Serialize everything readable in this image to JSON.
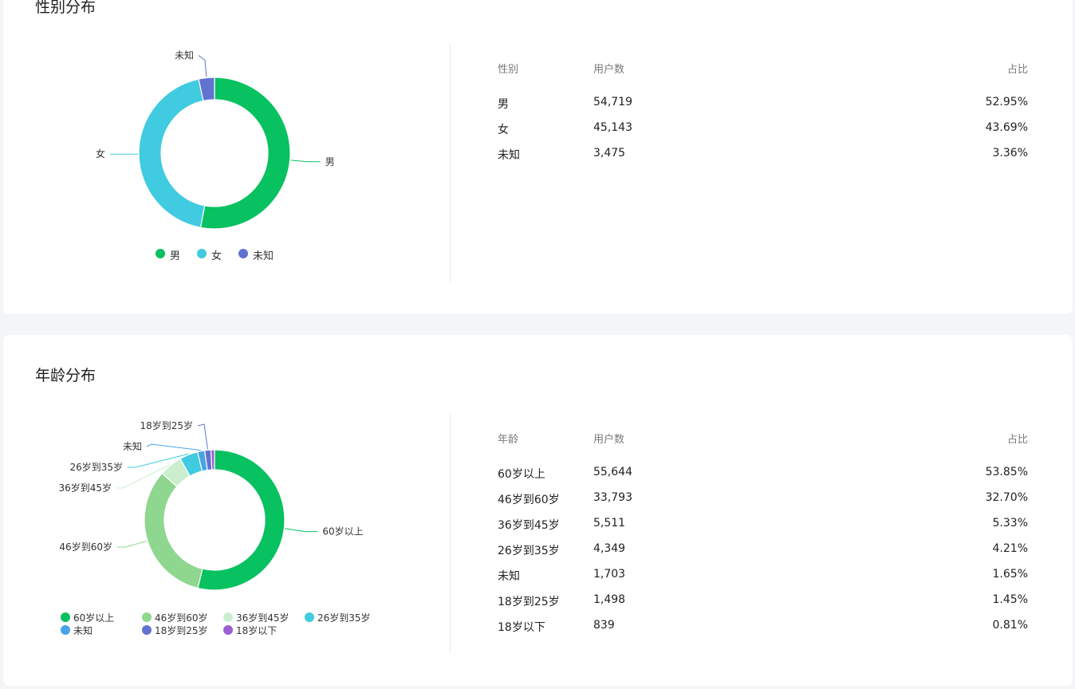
{
  "colors": {
    "male": "#08c160",
    "female": "#40cbe0",
    "unknown_gender": "#6272d0",
    "age_60plus": "#08c160",
    "age_46_60": "#8fd68f",
    "age_36_45": "#cbeecf",
    "age_26_35": "#40cbe0",
    "age_unknown": "#47a3e8",
    "age_18_25": "#6272d0",
    "age_under18": "#9b5fd6"
  },
  "gender": {
    "title": "性别分布",
    "table": {
      "headers": [
        "性别",
        "用户数",
        "占比"
      ],
      "rows": [
        [
          "男",
          "54,719",
          "52.95%"
        ],
        [
          "女",
          "45,143",
          "43.69%"
        ],
        [
          "未知",
          "3,475",
          "3.36%"
        ]
      ]
    }
  },
  "age": {
    "title": "年龄分布",
    "table": {
      "headers": [
        "年龄",
        "用户数",
        "占比"
      ],
      "rows": [
        [
          "60岁以上",
          "55,644",
          "53.85%"
        ],
        [
          "46岁到60岁",
          "33,793",
          "32.70%"
        ],
        [
          "36岁到45岁",
          "5,511",
          "5.33%"
        ],
        [
          "26岁到35岁",
          "4,349",
          "4.21%"
        ],
        [
          "未知",
          "1,703",
          "1.65%"
        ],
        [
          "18岁到25岁",
          "1,498",
          "1.45%"
        ],
        [
          "18岁以下",
          "839",
          "0.81%"
        ]
      ]
    }
  },
  "chart_data": [
    {
      "type": "pie",
      "title": "性别分布",
      "categories": [
        "男",
        "女",
        "未知"
      ],
      "values": [
        54719,
        45143,
        3475
      ],
      "colors": [
        "#08c160",
        "#40cbe0",
        "#6272d0"
      ],
      "legend": "bottom"
    },
    {
      "type": "pie",
      "title": "年龄分布",
      "categories": [
        "60岁以上",
        "46岁到60岁",
        "36岁到45岁",
        "26岁到35岁",
        "未知",
        "18岁到25岁",
        "18岁以下"
      ],
      "values": [
        55644,
        33793,
        5511,
        4349,
        1703,
        1498,
        839
      ],
      "colors": [
        "#08c160",
        "#8fd68f",
        "#cbeecf",
        "#40cbe0",
        "#47a3e8",
        "#6272d0",
        "#9b5fd6"
      ],
      "legend": "bottom"
    }
  ]
}
